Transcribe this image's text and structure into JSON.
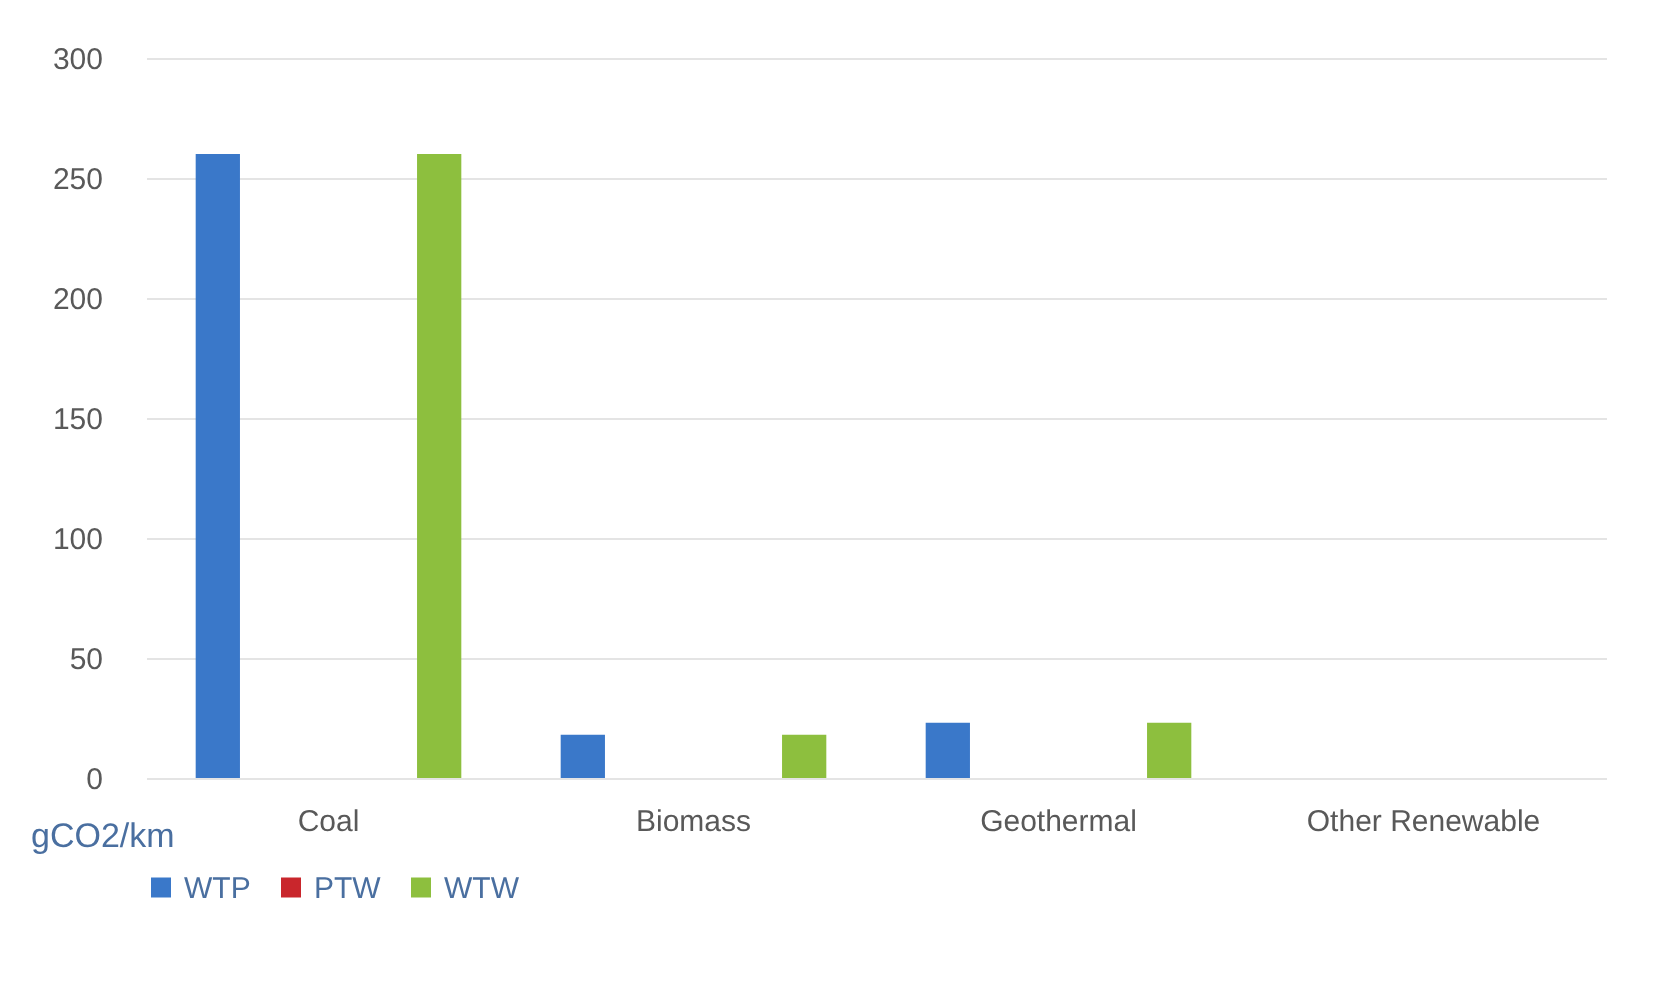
{
  "chart_data": {
    "type": "bar",
    "ylabel": "gCO2/km",
    "categories": [
      "Coal",
      "Biomass",
      "Geothermal",
      "Other Renewable"
    ],
    "series": [
      {
        "name": "WTP",
        "color": "#3a78c9",
        "values": [
          260,
          18,
          23,
          0
        ]
      },
      {
        "name": "PTW",
        "color": "#c9262c",
        "values": [
          0,
          0,
          0,
          0
        ]
      },
      {
        "name": "WTW",
        "color": "#8dbf3e",
        "values": [
          260,
          18,
          23,
          0
        ]
      }
    ],
    "ylim": [
      0,
      300
    ],
    "yticks": [
      0,
      50,
      100,
      150,
      200,
      250,
      300
    ],
    "grid": "y",
    "legend": "bottom"
  }
}
